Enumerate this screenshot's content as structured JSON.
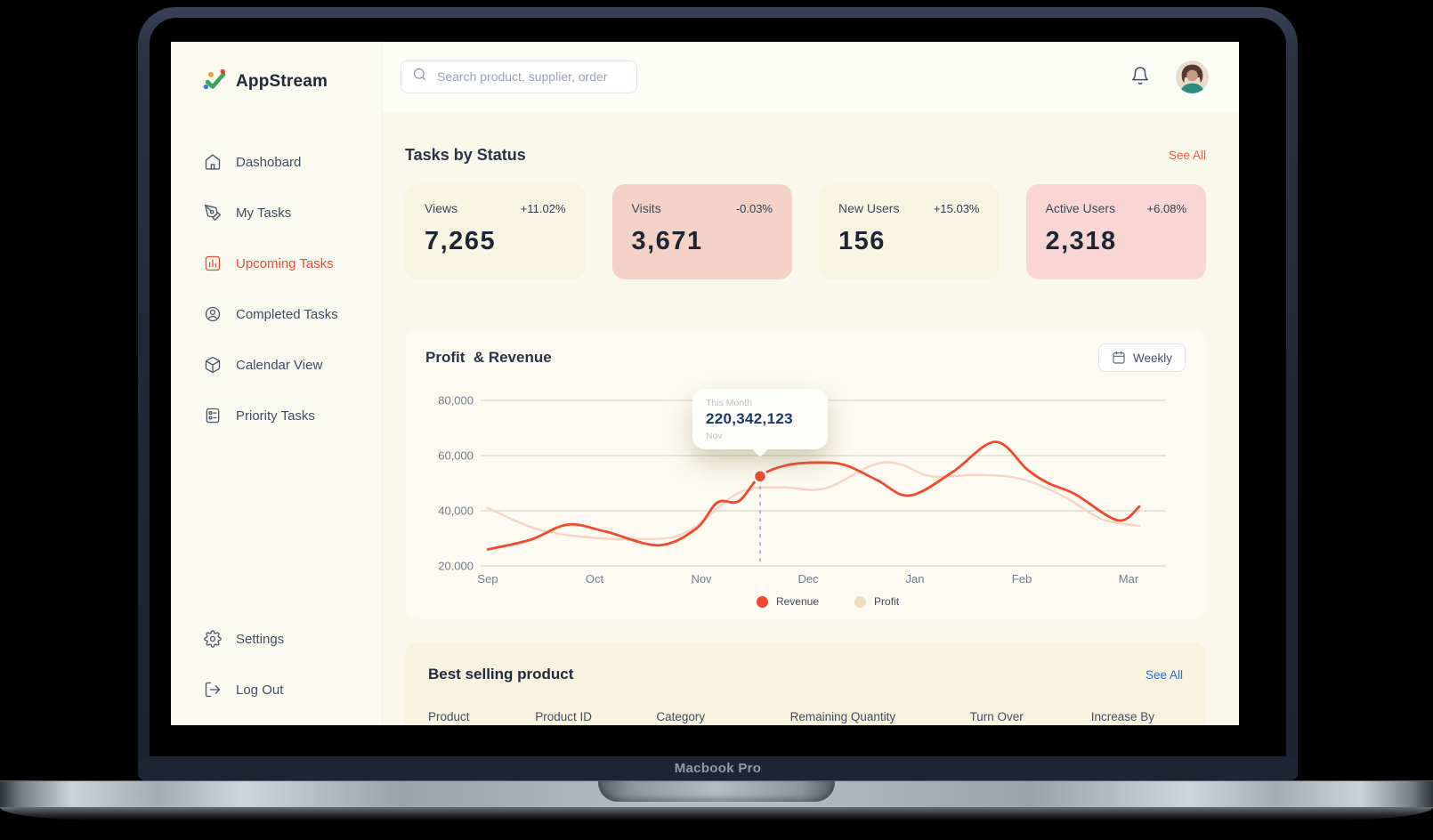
{
  "device": {
    "name": "Macbook Pro"
  },
  "app": {
    "brand": "AppStream"
  },
  "sidebar": {
    "items": [
      {
        "label": "Dashobard",
        "active": false
      },
      {
        "label": "My Tasks",
        "active": false
      },
      {
        "label": "Upcoming Tasks",
        "active": true
      },
      {
        "label": "Completed Tasks",
        "active": false
      },
      {
        "label": "Calendar View",
        "active": false
      },
      {
        "label": "Priority Tasks",
        "active": false
      }
    ],
    "footer_items": [
      {
        "label": "Settings"
      },
      {
        "label": "Log Out"
      }
    ]
  },
  "topbar": {
    "search_placeholder": "Search product, supplier, order"
  },
  "tasks_by_status": {
    "title": "Tasks by Status",
    "see_all": "See All",
    "cards": [
      {
        "label": "Views",
        "delta": "+11.02%",
        "value": "7,265",
        "variant": "cream"
      },
      {
        "label": "Visits",
        "delta": "-0.03%",
        "value": "3,671",
        "variant": "salmon"
      },
      {
        "label": "New Users",
        "delta": "+15.03%",
        "value": "156",
        "variant": "cream"
      },
      {
        "label": "Active Users",
        "delta": "+6.08%",
        "value": "2,318",
        "variant": "pink"
      }
    ]
  },
  "profit_revenue": {
    "title": "Profit  & Revenue",
    "period_button": "Weekly"
  },
  "chart_data": {
    "type": "line",
    "title": "Profit & Revenue",
    "x_labels": [
      "Sep",
      "Oct",
      "Nov",
      "Dec",
      "Jan",
      "Feb",
      "Mar"
    ],
    "ylim": [
      20000,
      80000
    ],
    "yticks": [
      {
        "value": 80000,
        "label": "80,000"
      },
      {
        "value": 60000,
        "label": "60,000"
      },
      {
        "value": 40000,
        "label": "40,000"
      },
      {
        "value": 20000,
        "label": "20.000"
      }
    ],
    "grid": true,
    "legend_position": "bottom",
    "series": [
      {
        "name": "Revenue",
        "color": "#f1492f",
        "points": [
          [
            0,
            26000
          ],
          [
            0.4,
            29500
          ],
          [
            0.75,
            35000
          ],
          [
            1.1,
            32500
          ],
          [
            1.6,
            27500
          ],
          [
            1.95,
            33500
          ],
          [
            2.15,
            43000
          ],
          [
            2.35,
            43500
          ],
          [
            2.55,
            52500
          ],
          [
            2.8,
            56500
          ],
          [
            3.1,
            57500
          ],
          [
            3.35,
            56500
          ],
          [
            3.65,
            51000
          ],
          [
            3.95,
            45500
          ],
          [
            4.35,
            54000
          ],
          [
            4.75,
            65000
          ],
          [
            5.05,
            55000
          ],
          [
            5.25,
            50000
          ],
          [
            5.5,
            46000
          ],
          [
            5.9,
            36500
          ],
          [
            6.1,
            41500
          ]
        ]
      },
      {
        "name": "Profit",
        "color": "#f7d4c5",
        "legend_color": "#eddcc2",
        "points": [
          [
            0,
            41000
          ],
          [
            0.45,
            33500
          ],
          [
            0.9,
            30500
          ],
          [
            1.4,
            29700
          ],
          [
            1.85,
            32000
          ],
          [
            2.35,
            46500
          ],
          [
            2.75,
            48500
          ],
          [
            3.15,
            48000
          ],
          [
            3.6,
            56500
          ],
          [
            3.85,
            57000
          ],
          [
            4.15,
            52500
          ],
          [
            4.6,
            53000
          ],
          [
            5.0,
            51500
          ],
          [
            5.4,
            45000
          ],
          [
            5.75,
            37000
          ],
          [
            6.1,
            34500
          ]
        ]
      }
    ],
    "marker": {
      "x": 2.55,
      "value": 52500,
      "tooltip_title": "This Month",
      "tooltip_value": "220,342,123",
      "tooltip_sub": "Nov"
    }
  },
  "best_selling": {
    "title": "Best selling product",
    "see_all": "See All",
    "columns": [
      "Product",
      "Product ID",
      "Category",
      "Remaining Quantity",
      "Turn Over",
      "Increase By"
    ]
  },
  "colors": {
    "accent": "#ee4b33",
    "see_all_top": "#f15b3f",
    "see_all_bottom": "#2f6fd6",
    "card_cream": "#f7f4e2",
    "card_salmon": "#f5d2c6",
    "card_pink": "#f9d6d3",
    "revenue": "#f1492f",
    "profit_line": "#f7d4c5",
    "profit_legend": "#eddcc2",
    "tooltip_value_text": "#1a3a66",
    "dashed_guide": "#99a2d2"
  }
}
